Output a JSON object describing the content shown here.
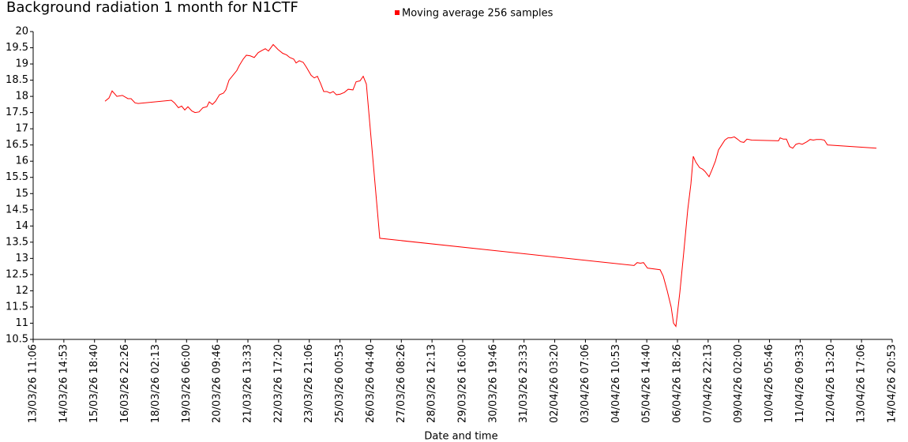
{
  "chart_data": {
    "type": "line",
    "title": "Background radiation 1 month for N1CTF",
    "xlabel": "Date and time",
    "x": [
      "16/03/26 04:10",
      "16/03/26 07:44",
      "16/03/26 10:35",
      "16/03/26 14:53",
      "16/03/26 19:53",
      "17/03/26 00:53",
      "17/03/26 03:45",
      "17/03/26 07:19",
      "17/03/26 10:11",
      "18/03/26 16:13",
      "18/03/26 19:04",
      "18/03/26 22:38",
      "19/03/26 01:30",
      "19/03/26 04:22",
      "19/03/26 07:13",
      "19/03/26 10:47",
      "19/03/26 13:39",
      "19/03/26 17:14",
      "19/03/26 20:48",
      "20/03/26 00:23",
      "20/03/26 02:31",
      "20/03/26 05:23",
      "20/03/26 08:14",
      "20/03/26 11:49",
      "20/03/26 15:23",
      "20/03/26 17:32",
      "20/03/26 20:24",
      "20/03/26 23:58",
      "21/03/26 03:32",
      "21/03/26 05:41",
      "21/03/26 09:16",
      "21/03/26 12:07",
      "21/03/26 15:42",
      "21/03/26 19:16",
      "21/03/26 22:51",
      "22/03/26 02:25",
      "22/03/26 05:17",
      "22/03/26 08:08",
      "22/03/26 12:26",
      "22/03/26 16:43",
      "22/03/26 21:01",
      "23/03/26 00:35",
      "23/03/26 03:26",
      "23/03/26 07:01",
      "23/03/26 09:10",
      "23/03/26 12:01",
      "23/03/26 15:36",
      "23/03/26 18:28",
      "23/03/26 22:45",
      "24/03/26 01:36",
      "24/03/26 04:28",
      "24/03/26 07:19",
      "24/03/26 10:11",
      "24/03/26 13:02",
      "24/03/26 15:54",
      "24/03/26 18:46",
      "24/03/26 21:37",
      "25/03/26 01:12",
      "25/03/26 04:46",
      "25/03/26 08:21",
      "25/03/26 12:38",
      "25/03/26 15:29",
      "25/03/26 19:04",
      "25/03/26 21:56",
      "26/03/26 00:47",
      "26/03/26 12:56",
      "05/04/26 03:08",
      "05/04/26 05:59",
      "05/04/26 08:51",
      "05/04/26 11:43",
      "05/04/26 15:17",
      "06/04/26 02:44",
      "06/04/26 05:35",
      "06/04/26 09:10",
      "06/04/26 12:44",
      "06/04/26 14:53",
      "06/04/26 17:02",
      "06/04/26 20:36",
      "07/04/26 00:11",
      "07/04/26 03:45",
      "07/04/26 06:37",
      "07/04/26 08:46",
      "07/04/26 10:54",
      "07/04/26 14:29",
      "07/04/26 17:20",
      "07/04/26 19:29",
      "07/04/26 23:03",
      "08/04/26 01:55",
      "08/04/26 04:46",
      "08/04/26 07:38",
      "08/04/26 10:29",
      "08/04/26 13:21",
      "08/04/26 16:13",
      "08/04/26 19:04",
      "08/04/26 21:56",
      "09/04/26 00:47",
      "09/04/26 03:39",
      "09/04/26 06:31",
      "09/04/26 09:22",
      "09/04/26 13:40",
      "10/04/26 13:58",
      "10/04/26 15:24",
      "10/04/26 18:16",
      "10/04/26 21:07",
      "10/04/26 23:58",
      "11/04/26 02:50",
      "11/04/26 05:41",
      "11/04/26 08:33",
      "11/04/26 11:25",
      "11/04/26 15:42",
      "11/04/26 18:34",
      "11/04/26 21:25",
      "12/04/26 00:17",
      "12/04/26 04:34",
      "12/04/26 07:26",
      "12/04/26 10:17",
      "14/04/26 06:37"
    ],
    "series": [
      {
        "name": "Moving average 256 samples",
        "color": "#ff0000",
        "values": [
          17.85,
          17.95,
          18.17,
          18.0,
          18.03,
          17.93,
          17.93,
          17.8,
          17.78,
          17.88,
          17.8,
          17.65,
          17.7,
          17.58,
          17.68,
          17.55,
          17.5,
          17.52,
          17.65,
          17.68,
          17.83,
          17.75,
          17.85,
          18.05,
          18.1,
          18.2,
          18.5,
          18.65,
          18.8,
          18.95,
          19.15,
          19.27,
          19.25,
          19.2,
          19.35,
          19.42,
          19.47,
          19.4,
          19.6,
          19.45,
          19.33,
          19.28,
          19.2,
          19.15,
          19.03,
          19.1,
          19.05,
          18.9,
          18.65,
          18.57,
          18.62,
          18.4,
          18.15,
          18.15,
          18.1,
          18.15,
          18.05,
          18.07,
          18.12,
          18.22,
          18.2,
          18.45,
          18.48,
          18.62,
          18.38,
          13.62,
          12.78,
          12.87,
          12.85,
          12.87,
          12.7,
          12.65,
          12.45,
          12.0,
          11.5,
          11.0,
          10.9,
          11.95,
          13.2,
          14.5,
          15.3,
          16.15,
          15.98,
          15.8,
          15.75,
          15.68,
          15.52,
          15.75,
          16.0,
          16.35,
          16.5,
          16.65,
          16.72,
          16.72,
          16.75,
          16.68,
          16.6,
          16.58,
          16.68,
          16.65,
          16.63,
          16.72,
          16.68,
          16.68,
          16.45,
          16.4,
          16.52,
          16.55,
          16.52,
          16.6,
          16.67,
          16.65,
          16.67,
          16.67,
          16.65,
          16.5,
          16.4
        ]
      }
    ],
    "xlim": [
      "13/03/26 11:06",
      "14/04/26 20:53"
    ],
    "xticks": [
      "13/03/26 11:06",
      "14/03/26 14:53",
      "15/03/26 18:40",
      "16/03/26 22:26",
      "18/03/26 02:13",
      "19/03/26 06:00",
      "20/03/26 09:46",
      "21/03/26 13:33",
      "22/03/26 17:20",
      "23/03/26 21:06",
      "25/03/26 00:53",
      "26/03/26 04:40",
      "27/03/26 08:26",
      "28/03/26 12:13",
      "29/03/26 16:00",
      "30/03/26 19:46",
      "31/03/26 23:33",
      "02/04/26 03:20",
      "03/04/26 07:06",
      "04/04/26 10:53",
      "05/04/26 14:40",
      "06/04/26 18:26",
      "07/04/26 22:13",
      "09/04/26 02:00",
      "10/04/26 05:46",
      "11/04/26 09:33",
      "12/04/26 13:20",
      "13/04/26 17:06",
      "14/04/26 20:53"
    ],
    "ylim": [
      10.5,
      20
    ],
    "yticks": [
      10.5,
      11,
      11.5,
      12,
      12.5,
      13,
      13.5,
      14,
      14.5,
      15,
      15.5,
      16,
      16.5,
      17,
      17.5,
      18,
      18.5,
      19,
      19.5,
      20
    ],
    "grid": false
  }
}
